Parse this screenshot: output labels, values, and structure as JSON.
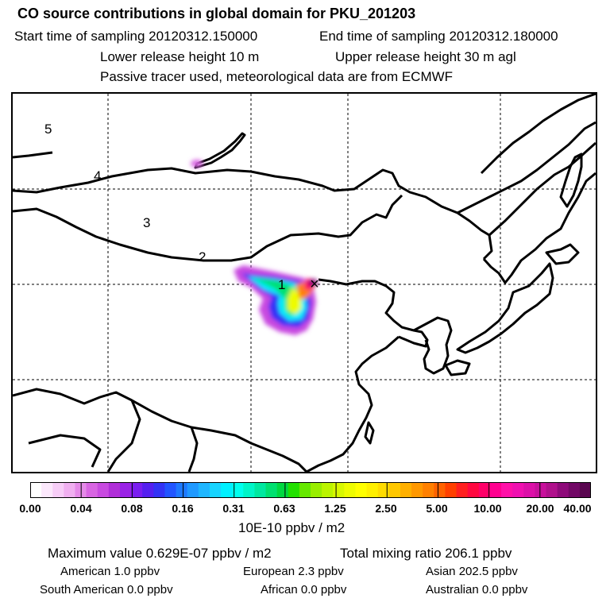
{
  "header": {
    "title": "CO  source contributions in global domain for PKU_201203",
    "start_label": "Start time of sampling 20120312.150000",
    "end_label": "End time of sampling 20120312.180000",
    "lower_label": "Lower release height   10 m",
    "upper_label": "Upper release height   30 m    agl",
    "tracer_label": "Passive tracer used, meteorological data are from ECMWF"
  },
  "map": {
    "trajectory_labels": [
      "1",
      "2",
      "3",
      "4",
      "5"
    ],
    "marker_symbol": "×"
  },
  "colorbar": {
    "ticks": [
      "0.00",
      "0.04",
      "0.08",
      "0.16",
      "0.31",
      "0.63",
      "1.25",
      "2.50",
      "5.00",
      "10.00",
      "20.00",
      "40.00"
    ],
    "unit_label": "10E-10 ppbv / m2",
    "colors": [
      "#ffffff",
      "#fce8fc",
      "#f7cdf7",
      "#f0aff0",
      "#e58ae8",
      "#d865e2",
      "#c84ae0",
      "#b02ed8",
      "#9a22e6",
      "#7a1ef0",
      "#5520f0",
      "#3333f5",
      "#2255ff",
      "#1e79ff",
      "#1f99ff",
      "#1fb6ff",
      "#18d4ff",
      "#00f0ff",
      "#00ffee",
      "#00f5c8",
      "#00e8a0",
      "#00e070",
      "#00d840",
      "#22e000",
      "#66e800",
      "#99ee00",
      "#bbf400",
      "#d8f800",
      "#eefc00",
      "#ffff00",
      "#fff000",
      "#ffdc00",
      "#ffc800",
      "#ffb000",
      "#ff9800",
      "#ff8000",
      "#ff6200",
      "#ff4000",
      "#ff2020",
      "#ff0840",
      "#ff0068",
      "#ff0090",
      "#ff10a8",
      "#f010b0",
      "#dc10a8",
      "#c8109c",
      "#b0108c",
      "#8e0a7a",
      "#720866",
      "#5a0650"
    ]
  },
  "stats": {
    "max_label": "Maximum value  0.629E-07 ppbv / m2",
    "total_label": "Total mixing ratio      206.1 ppbv",
    "american": "American         1.0 ppbv",
    "european": "European         2.3 ppbv",
    "asian": "Asian     202.5 ppbv",
    "south_american": "South American         0.0 ppbv",
    "african": "African        0.0 ppbv",
    "australian": "Australian          0.0 ppbv"
  }
}
